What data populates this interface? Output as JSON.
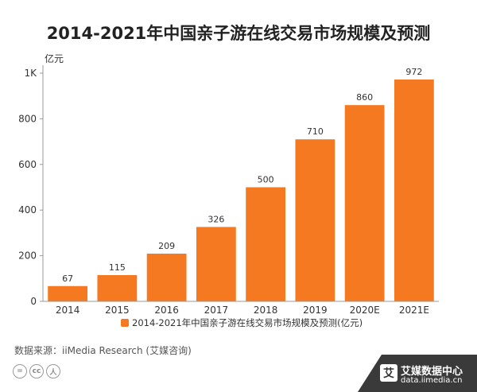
{
  "chart_data": {
    "type": "bar",
    "title": "2014-2021年中国亲子游在线交易市场规模及预测",
    "unit_label": "亿元",
    "categories": [
      "2014",
      "2015",
      "2016",
      "2017",
      "2018",
      "2019",
      "2020E",
      "2021E"
    ],
    "series": [
      {
        "name": "2014-2021年中国亲子游在线交易市场规模及预测(亿元)",
        "values": [
          67,
          115,
          209,
          326,
          500,
          710,
          860,
          972
        ]
      }
    ],
    "value_labels": [
      "67",
      "115",
      "209",
      "326",
      "500",
      "710",
      "860",
      "972"
    ],
    "yticks": [
      {
        "value": 0,
        "label": "0"
      },
      {
        "value": 200,
        "label": "200"
      },
      {
        "value": 400,
        "label": "400"
      },
      {
        "value": 600,
        "label": "600"
      },
      {
        "value": 800,
        "label": "800"
      },
      {
        "value": 1000,
        "label": "1K"
      }
    ],
    "ylim": [
      0,
      1000
    ],
    "grid": false,
    "legend_position": "bottom-center",
    "bar_color": "#F47920"
  },
  "source_text": "数据来源：iiMedia Research (艾媒咨询)",
  "license_icons": [
    "equal-icon",
    "cc-icon",
    "person-icon"
  ],
  "license_glyphs": [
    "=",
    "cc",
    "人"
  ],
  "brand": {
    "mark": "艾",
    "name": "艾媒数据中心",
    "url": "data.iimedia.cn",
    "color": "#3a3a3a"
  }
}
